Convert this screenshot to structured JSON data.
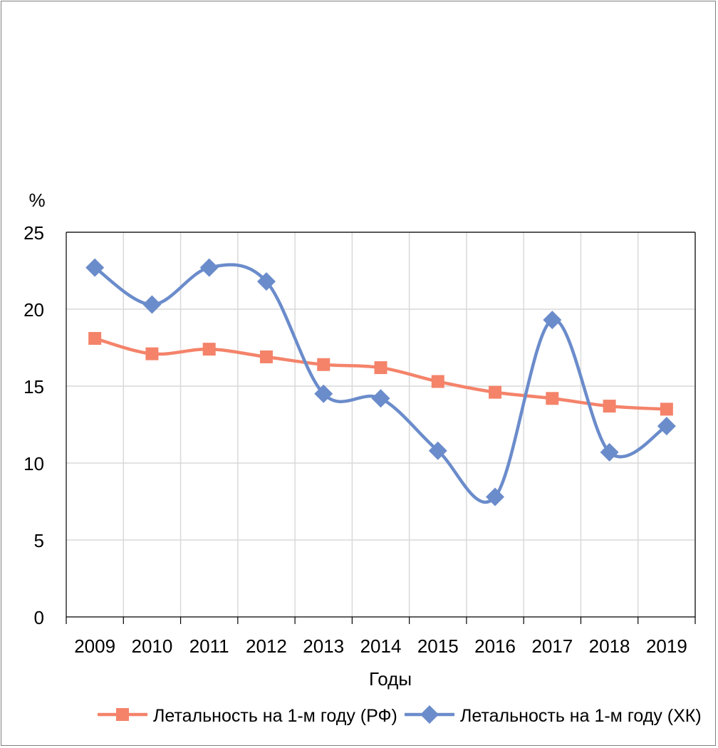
{
  "chart_data": {
    "type": "line",
    "title": "",
    "xlabel": "Годы",
    "ylabel": "%",
    "ylim": [
      0,
      25
    ],
    "yticks": [
      0,
      5,
      10,
      15,
      20,
      25
    ],
    "grid": true,
    "legend_position": "bottom",
    "categories": [
      "2009",
      "2010",
      "2011",
      "2012",
      "2013",
      "2014",
      "2015",
      "2016",
      "2017",
      "2018",
      "2019"
    ],
    "series": [
      {
        "name": "Летальность на 1-м году (РФ)",
        "color": "#F4836A",
        "marker": "square",
        "values": [
          18.1,
          17.1,
          17.4,
          16.9,
          16.4,
          16.2,
          15.3,
          14.6,
          14.2,
          13.7,
          13.5
        ]
      },
      {
        "name": "Летальность на 1-м году (ХК)",
        "color": "#6B8CCB",
        "marker": "diamond",
        "values": [
          22.7,
          20.3,
          22.7,
          21.8,
          14.5,
          14.2,
          10.8,
          7.8,
          19.3,
          10.7,
          12.4
        ]
      }
    ]
  }
}
